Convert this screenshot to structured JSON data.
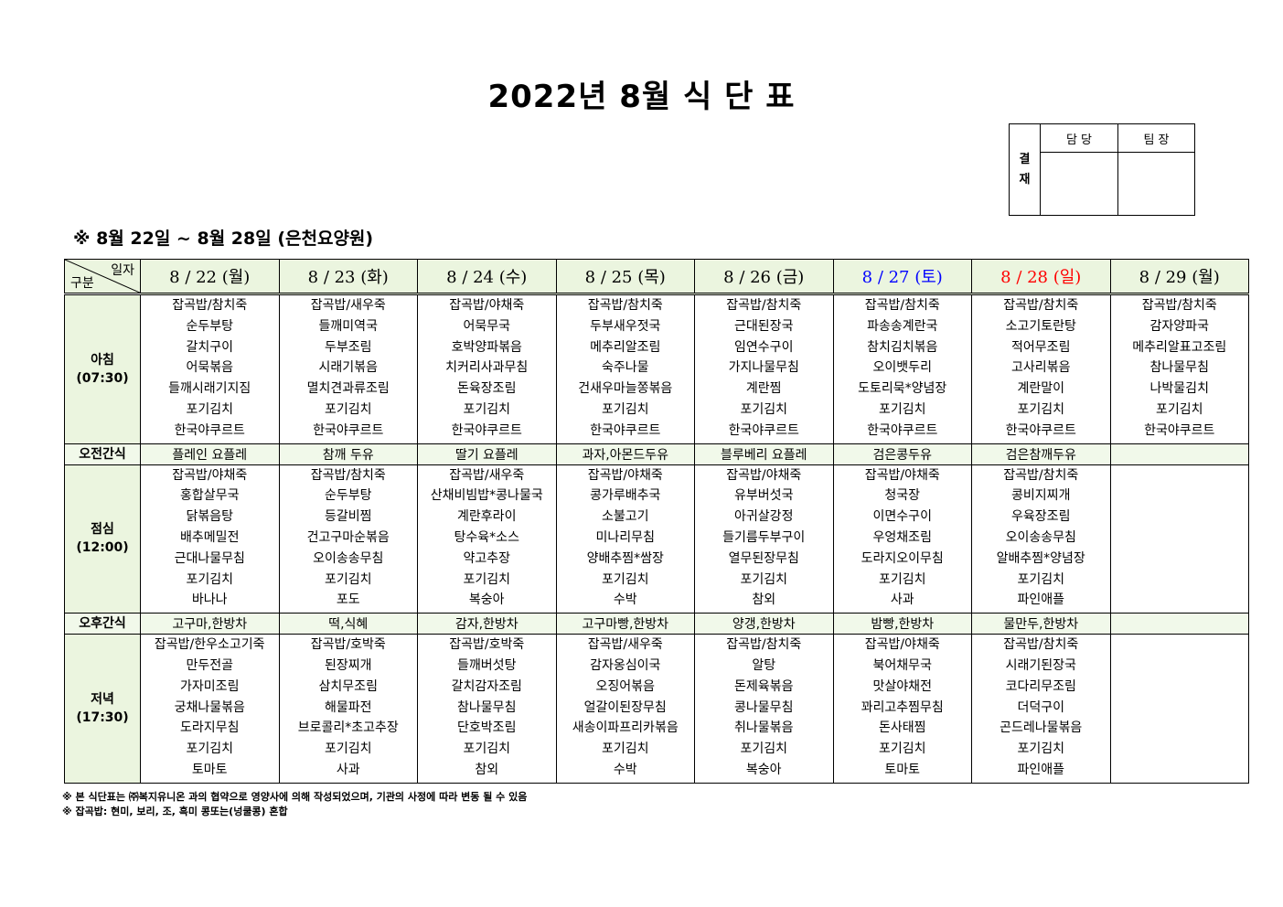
{
  "title": "2022년 8월 식 단 표",
  "approval": {
    "label": "결\n재",
    "col1": "담 당",
    "col2": "팀 장"
  },
  "subtitle": "※ 8월 22일 ~ 8월 28일 (은천요양원)",
  "header": {
    "corner_top": "일자",
    "corner_bottom": "구분"
  },
  "colors": {
    "saturday": "#0000ff",
    "sunday": "#ff0000",
    "header_bg": "#ebf5df"
  },
  "days": [
    {
      "label": "8 / 22 (월)",
      "type": "weekday"
    },
    {
      "label": "8 / 23 (화)",
      "type": "weekday"
    },
    {
      "label": "8 / 24 (수)",
      "type": "weekday"
    },
    {
      "label": "8 / 25 (목)",
      "type": "weekday"
    },
    {
      "label": "8 / 26 (금)",
      "type": "weekday"
    },
    {
      "label": "8 / 27 (토)",
      "type": "saturday"
    },
    {
      "label": "8 / 28 (일)",
      "type": "sunday"
    },
    {
      "label": "8 / 29 (월)",
      "type": "weekday"
    }
  ],
  "rows": [
    {
      "kind": "meal",
      "label": "아침",
      "time": "(07:30)",
      "cells": [
        [
          "잡곡밥/참치죽",
          "순두부탕",
          "갈치구이",
          "어묵볶음",
          "들깨시래기지짐",
          "포기김치",
          "한국야쿠르트"
        ],
        [
          "잡곡밥/새우죽",
          "들깨미역국",
          "두부조림",
          "시래기볶음",
          "멸치견과류조림",
          "포기김치",
          "한국야쿠르트"
        ],
        [
          "잡곡밥/야채죽",
          "어묵무국",
          "호박양파볶음",
          "치커리사과무침",
          "돈육장조림",
          "포기김치",
          "한국야쿠르트"
        ],
        [
          "잡곡밥/참치죽",
          "두부새우젓국",
          "메추리알조림",
          "숙주나물",
          "건새우마늘쫑볶음",
          "포기김치",
          "한국야쿠르트"
        ],
        [
          "잡곡밥/참치죽",
          "근대된장국",
          "임연수구이",
          "가지나물무침",
          "계란찜",
          "포기김치",
          "한국야쿠르트"
        ],
        [
          "잡곡밥/참치죽",
          "파송송계란국",
          "참치김치볶음",
          "오이뱃두리",
          "도토리묵*양념장",
          "포기김치",
          "한국야쿠르트"
        ],
        [
          "잡곡밥/참치죽",
          "소고기토란탕",
          "적어무조림",
          "고사리볶음",
          "계란말이",
          "포기김치",
          "한국야쿠르트"
        ],
        [
          "잡곡밥/참치죽",
          "감자양파국",
          "메추리알표고조림",
          "참나물무침",
          "나박물김치",
          "포기김치",
          "한국야쿠르트"
        ]
      ]
    },
    {
      "kind": "snack",
      "label": "오전간식",
      "cells": [
        "플레인 요플레",
        "참깨 두유",
        "딸기 요플레",
        "과자,아몬드두유",
        "블루베리 요플레",
        "검은콩두유",
        "검은참깨두유",
        ""
      ]
    },
    {
      "kind": "meal",
      "label": "점심",
      "time": "(12:00)",
      "cells": [
        [
          "잡곡밥/야채죽",
          "홍합살무국",
          "닭볶음탕",
          "배추메밀전",
          "근대나물무침",
          "포기김치",
          "바나나"
        ],
        [
          "잡곡밥/참치죽",
          "순두부탕",
          "등갈비찜",
          "건고구마순볶음",
          "오이송송무침",
          "포기김치",
          "포도"
        ],
        [
          "잡곡밥/새우죽",
          "산채비빔밥*콩나물국",
          "계란후라이",
          "탕수육*소스",
          "약고추장",
          "포기김치",
          "복숭아"
        ],
        [
          "잡곡밥/야채죽",
          "콩가루배추국",
          "소불고기",
          "미나리무침",
          "양배추찜*쌈장",
          "포기김치",
          "수박"
        ],
        [
          "잡곡밥/야채죽",
          "유부버섯국",
          "아귀살강정",
          "들기름두부구이",
          "열무된장무침",
          "포기김치",
          "참외"
        ],
        [
          "잡곡밥/야채죽",
          "청국장",
          "이면수구이",
          "우엉채조림",
          "도라지오이무침",
          "포기김치",
          "사과"
        ],
        [
          "잡곡밥/참치죽",
          "콩비지찌개",
          "우육장조림",
          "오이송송무침",
          "알배추찜*양념장",
          "포기김치",
          "파인애플"
        ],
        []
      ]
    },
    {
      "kind": "snack",
      "label": "오후간식",
      "cells": [
        "고구마,한방차",
        "떡,식혜",
        "감자,한방차",
        "고구마빵,한방차",
        "양갱,한방차",
        "밤빵,한방차",
        "물만두,한방차",
        ""
      ]
    },
    {
      "kind": "meal",
      "label": "저녁",
      "time": "(17:30)",
      "cells": [
        [
          "잡곡밥/한우소고기죽",
          "만두전골",
          "가자미조림",
          "궁채나물볶음",
          "도라지무침",
          "포기김치",
          "토마토"
        ],
        [
          "잡곡밥/호박죽",
          "된장찌개",
          "삼치무조림",
          "해물파전",
          "브로콜리*초고추장",
          "포기김치",
          "사과"
        ],
        [
          "잡곡밥/호박죽",
          "들깨버섯탕",
          "갈치감자조림",
          "참나물무침",
          "단호박조림",
          "포기김치",
          "참외"
        ],
        [
          "잡곡밥/새우죽",
          "감자옹심이국",
          "오징어볶음",
          "얼갈이된장무침",
          "새송이파프리카볶음",
          "포기김치",
          "수박"
        ],
        [
          "잡곡밥/참치죽",
          "알탕",
          "돈제육볶음",
          "콩나물무침",
          "취나물볶음",
          "포기김치",
          "복숭아"
        ],
        [
          "잡곡밥/야채죽",
          "북어채무국",
          "맛살야채전",
          "꽈리고추찜무침",
          "돈사태찜",
          "포기김치",
          "토마토"
        ],
        [
          "잡곡밥/참치죽",
          "시래기된장국",
          "코다리무조림",
          "더덕구이",
          "곤드레나물볶음",
          "포기김치",
          "파인애플"
        ],
        []
      ]
    }
  ],
  "notes": [
    "※ 본 식단표는 ㈜복지유니온 과의 협약으로 영양사에 의해 작성되었으며, 기관의 사정에 따라 변동 될 수 있음",
    "※ 잡곡밥: 현미, 보리, 조, 흑미 콩또는(넝쿨콩) 혼합"
  ]
}
